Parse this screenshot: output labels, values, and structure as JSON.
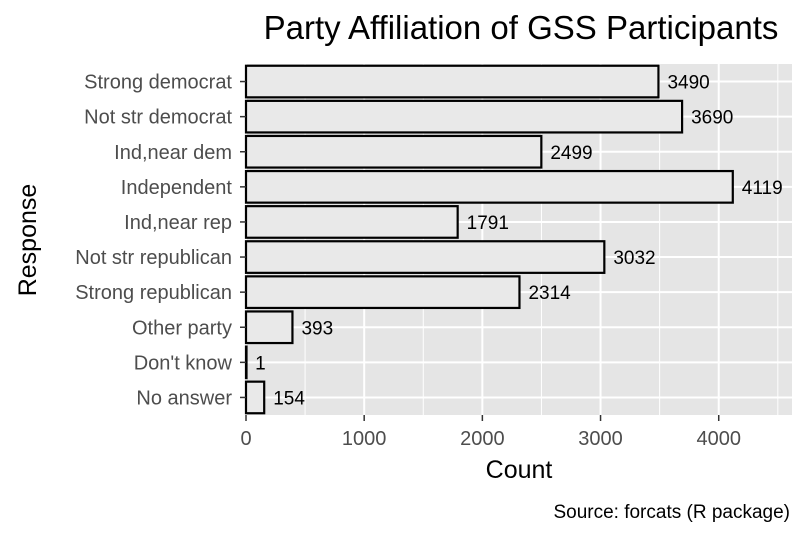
{
  "chart_data": {
    "type": "bar",
    "orientation": "horizontal",
    "title": "Party Affiliation of GSS Participants",
    "xlabel": "Count",
    "ylabel": "Response",
    "caption": "Source: forcats (R package)",
    "categories": [
      "Strong democrat",
      "Not str democrat",
      "Ind,near dem",
      "Independent",
      "Ind,near rep",
      "Not str republican",
      "Strong republican",
      "Other party",
      "Don't know",
      "No answer"
    ],
    "values": [
      3490,
      3690,
      2499,
      4119,
      1791,
      3032,
      2314,
      393,
      1,
      154
    ],
    "xlim": [
      0,
      4620
    ],
    "xticks": [
      0,
      1000,
      2000,
      3000,
      4000
    ],
    "grid": true,
    "colors": {
      "panel": "#e5e5e5",
      "grid": "#ffffff",
      "bar_fill": "#e9e9e9",
      "bar_stroke": "#000000"
    }
  }
}
